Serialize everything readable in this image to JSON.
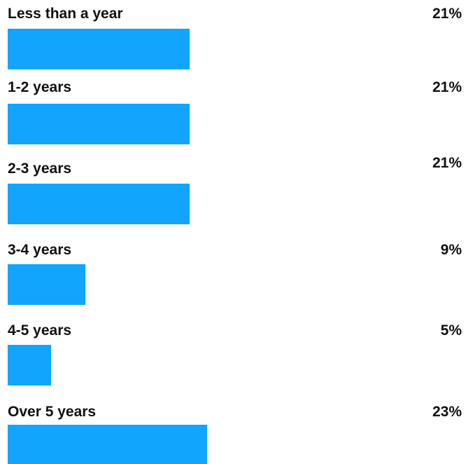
{
  "chart_data": {
    "type": "bar",
    "orientation": "horizontal",
    "categories": [
      "Less than a year",
      "1-2 years",
      "2-3 years",
      "3-4 years",
      "4-5 years",
      "Over 5 years"
    ],
    "values": [
      21,
      21,
      21,
      9,
      5,
      23
    ],
    "value_labels": [
      "21%",
      "21%",
      "21%",
      "9%",
      "5%",
      "23%"
    ],
    "unit": "%",
    "xlim": [
      0,
      50
    ],
    "grid": false,
    "legend": "none",
    "bar_color": "#12a5fd"
  }
}
